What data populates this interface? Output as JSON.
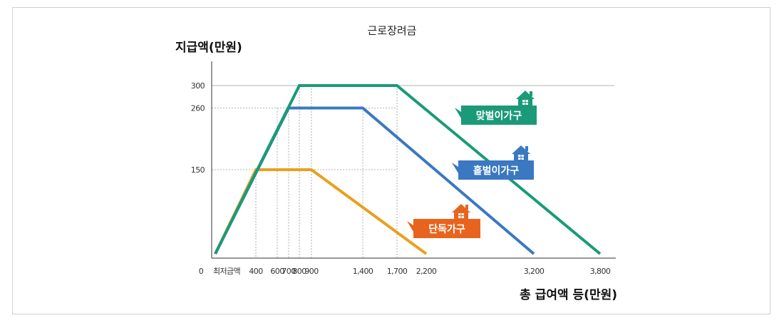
{
  "chart_data": {
    "type": "line",
    "title": "근로장려금",
    "ylabel": "지급액(만원)",
    "xlabel": "총 급여액 등(만원)",
    "x_ticks": [
      "0",
      "최저금액",
      "400",
      "600",
      "700",
      "800",
      "900",
      "1,400",
      "1,700",
      "2,200",
      "3,200",
      "3,800"
    ],
    "y_ticks": [
      "300",
      "260",
      "150"
    ],
    "series": [
      {
        "name": "맞벌이가구",
        "color": "#1a9a78",
        "points": [
          [
            0,
            0
          ],
          [
            800,
            300
          ],
          [
            1700,
            300
          ],
          [
            3800,
            0
          ]
        ]
      },
      {
        "name": "홑벌이가구",
        "color": "#3a78c2",
        "points": [
          [
            0,
            0
          ],
          [
            700,
            260
          ],
          [
            1400,
            260
          ],
          [
            3200,
            0
          ]
        ]
      },
      {
        "name": "단독가구",
        "color": "#e9a020",
        "points": [
          [
            0,
            0
          ],
          [
            400,
            150
          ],
          [
            900,
            150
          ],
          [
            2200,
            0
          ]
        ]
      }
    ],
    "badge_colors": {
      "맞벌이가구": "#1a9a78",
      "홑벌이가구": "#3a78c2",
      "단독가구": "#e8641e"
    }
  }
}
